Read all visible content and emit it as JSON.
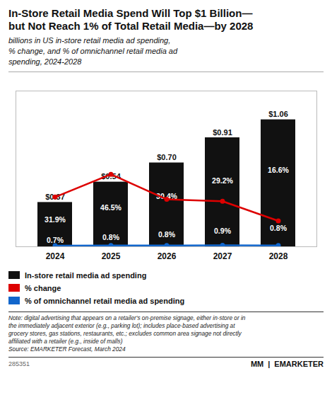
{
  "chart_data": {
    "type": "bar",
    "title": "In-Store Retail Media Spend Will Top $1 Billion—\nbut Not Reach 1% of Total Retail Media—by 2028",
    "subtitle": "billions in US in-store retail media ad spending,\n% change, and % of omnichannel retail media ad\nspending, 2024-2028",
    "categories": [
      "2024",
      "2025",
      "2026",
      "2027",
      "2028"
    ],
    "ylim": [
      0,
      1.3
    ],
    "y2lim": [
      0,
      100
    ],
    "tick_labels": "x",
    "data_labels": true,
    "legend": "bottom",
    "series": [
      {
        "name": "In-store retail media ad spending",
        "type": "bar",
        "color": "#111111",
        "values": [
          0.37,
          0.54,
          0.7,
          0.91,
          1.06
        ],
        "value_labels": [
          "$0.37",
          "$0.54",
          "$0.70",
          "$0.91",
          "$1.06"
        ]
      },
      {
        "name": "% change",
        "type": "line",
        "axis": "y2",
        "color": "#dd0000",
        "marker": "circle",
        "values": [
          31.9,
          46.5,
          30.4,
          29.2,
          16.6
        ],
        "value_labels": [
          "31.9%",
          "46.5%",
          "30.4%",
          "29.2%",
          "16.6%"
        ]
      },
      {
        "name": "% of omnichannel retail media ad spending",
        "type": "line",
        "axis": "y2",
        "color": "#1166cc",
        "marker": "circle",
        "values": [
          0.7,
          0.8,
          0.8,
          0.9,
          0.8
        ],
        "value_labels": [
          "0.7%",
          "0.8%",
          "0.8%",
          "0.9%",
          "0.8%"
        ]
      }
    ],
    "note": "Note: digital advertising that appears on a retailer's on-premise signage, either in-store or in\nthe immediately adjacent exterior (e.g., parking lot); includes place-based advertising at\ngrocery stores, gas stations, restaurants, etc.; excludes common area signage not directly\naffiliated with a retailer (e.g., inside of malls)\nSource: EMARKETER Forecast, March 2024",
    "annotations": [
      "285351",
      "ΜM",
      "|",
      "EMARKETER"
    ]
  }
}
